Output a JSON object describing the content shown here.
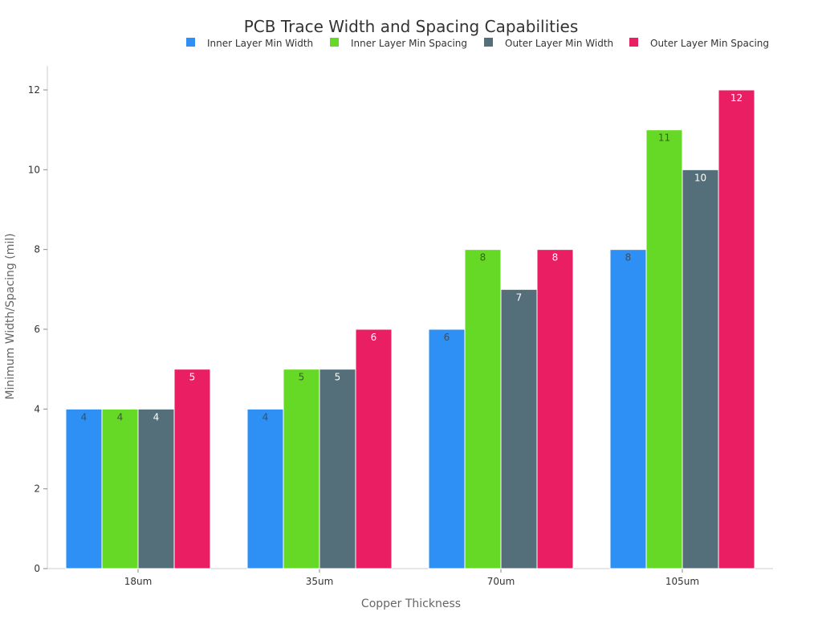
{
  "chart_data": {
    "type": "bar",
    "title": "PCB Trace Width and Spacing Capabilities",
    "xlabel": "Copper Thickness",
    "ylabel": "Minimum Width/Spacing (mil)",
    "categories": [
      "18um",
      "35um",
      "70um",
      "105um"
    ],
    "series": [
      {
        "name": "Inner Layer Min Width",
        "color": "#2e8ff5",
        "label_color": "#3a4f66",
        "values": [
          4,
          4,
          6,
          8
        ]
      },
      {
        "name": "Inner Layer Min Spacing",
        "color": "#66d926",
        "label_color": "#3d5a2a",
        "values": [
          4,
          5,
          8,
          11
        ]
      },
      {
        "name": "Outer Layer Min Width",
        "color": "#546e7a",
        "label_color": "#ffffff",
        "values": [
          4,
          5,
          7,
          10
        ]
      },
      {
        "name": "Outer Layer Min Spacing",
        "color": "#e91e63",
        "label_color": "#ffffff",
        "values": [
          5,
          6,
          8,
          12
        ]
      }
    ],
    "ylim": [
      0,
      12.6
    ],
    "yticks": [
      0,
      2,
      4,
      6,
      8,
      10,
      12
    ],
    "grid": false,
    "legend": "top-right",
    "data_labels": true
  }
}
